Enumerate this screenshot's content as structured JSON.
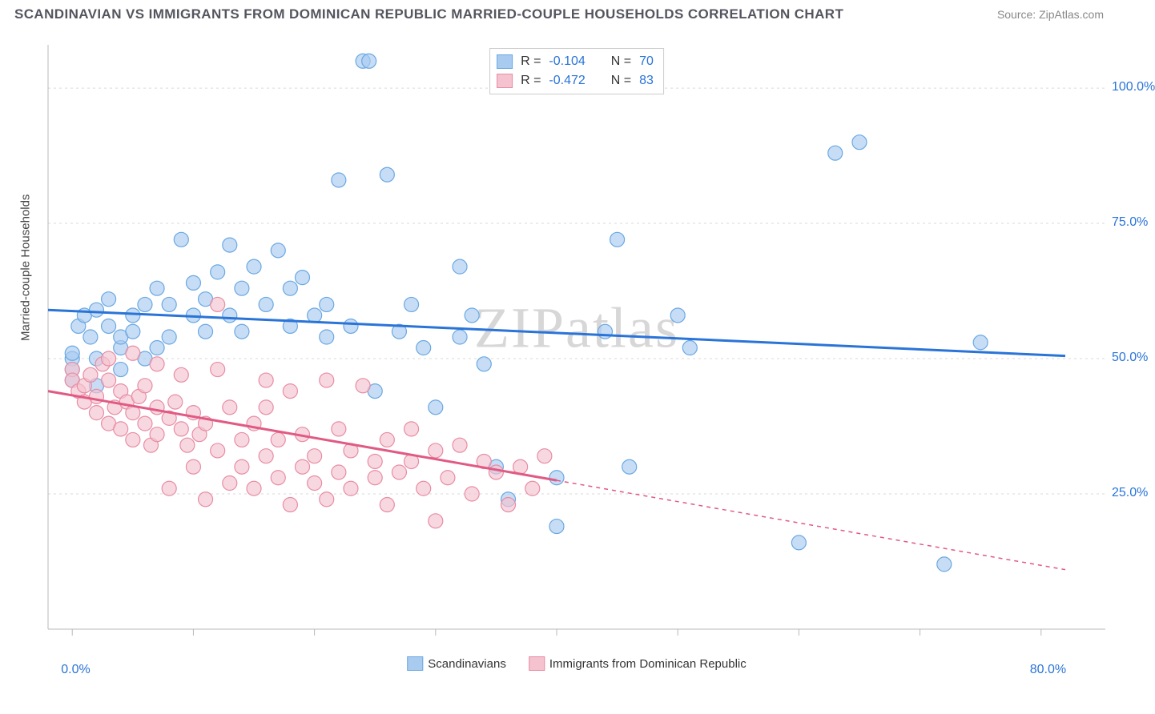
{
  "title": "SCANDINAVIAN VS IMMIGRANTS FROM DOMINICAN REPUBLIC MARRIED-COUPLE HOUSEHOLDS CORRELATION CHART",
  "source": "Source: ZipAtlas.com",
  "watermark": "ZIPatlas",
  "ylabel": "Married-couple Households",
  "chart": {
    "type": "scatter",
    "xlim": [
      -2,
      82
    ],
    "ylim": [
      0,
      108
    ],
    "xtick_positions": [
      0,
      10,
      20,
      30,
      40,
      50,
      60,
      70,
      80
    ],
    "xtick_labels": {
      "0": "0.0%",
      "80": "80.0%"
    },
    "ytick_positions_grid": [
      25,
      50,
      75,
      100
    ],
    "ytick_labels": {
      "25": "25.0%",
      "50": "50.0%",
      "75": "75.0%",
      "100": "100.0%"
    },
    "grid_color": "#d9d9d9",
    "axis_color": "#b9b9b9",
    "background_color": "#ffffff",
    "aspect_w": 1320,
    "aspect_h": 770
  },
  "series": [
    {
      "name": "Scandinavians",
      "marker_color_fill": "#a9cbef",
      "marker_color_stroke": "#6aa8e3",
      "marker_opacity": 0.65,
      "marker_radius": 9,
      "line_color": "#2a74d8",
      "line_width": 3,
      "r": "-0.104",
      "n": "70",
      "trend": {
        "x1": -2,
        "y1": 59,
        "x2": 82,
        "y2": 50.5
      },
      "trend_dash_after_x": null,
      "points": [
        [
          0,
          50
        ],
        [
          0,
          51
        ],
        [
          0,
          48
        ],
        [
          0,
          46
        ],
        [
          0.5,
          56
        ],
        [
          1,
          58
        ],
        [
          1.5,
          54
        ],
        [
          2,
          50
        ],
        [
          2,
          59
        ],
        [
          3,
          56
        ],
        [
          3,
          61
        ],
        [
          4,
          52
        ],
        [
          4,
          54
        ],
        [
          5,
          58
        ],
        [
          5,
          55
        ],
        [
          6,
          50
        ],
        [
          6,
          60
        ],
        [
          7,
          63
        ],
        [
          7,
          52
        ],
        [
          8,
          54
        ],
        [
          8,
          60
        ],
        [
          9,
          72
        ],
        [
          10,
          58
        ],
        [
          10,
          64
        ],
        [
          11,
          55
        ],
        [
          11,
          61
        ],
        [
          12,
          66
        ],
        [
          13,
          58
        ],
        [
          13,
          71
        ],
        [
          14,
          63
        ],
        [
          14,
          55
        ],
        [
          15,
          67
        ],
        [
          16,
          60
        ],
        [
          17,
          70
        ],
        [
          18,
          63
        ],
        [
          18,
          56
        ],
        [
          19,
          65
        ],
        [
          20,
          58
        ],
        [
          21,
          60
        ],
        [
          21,
          54
        ],
        [
          22,
          83
        ],
        [
          23,
          56
        ],
        [
          24,
          105
        ],
        [
          24.5,
          105
        ],
        [
          25,
          44
        ],
        [
          26,
          84
        ],
        [
          27,
          55
        ],
        [
          28,
          60
        ],
        [
          29,
          52
        ],
        [
          30,
          41
        ],
        [
          32,
          67
        ],
        [
          32,
          54
        ],
        [
          33,
          58
        ],
        [
          34,
          49
        ],
        [
          35,
          30
        ],
        [
          36,
          24
        ],
        [
          40,
          19
        ],
        [
          40,
          28
        ],
        [
          44,
          55
        ],
        [
          45,
          72
        ],
        [
          46,
          30
        ],
        [
          50,
          58
        ],
        [
          51,
          52
        ],
        [
          60,
          16
        ],
        [
          63,
          88
        ],
        [
          65,
          90
        ],
        [
          72,
          12
        ],
        [
          75,
          53
        ],
        [
          2,
          45
        ],
        [
          4,
          48
        ]
      ]
    },
    {
      "name": "Immigrants from Dominican Republic",
      "marker_color_fill": "#f4c3cf",
      "marker_color_stroke": "#e88ca4",
      "marker_opacity": 0.65,
      "marker_radius": 9,
      "line_color": "#e15a84",
      "line_width": 3,
      "r": "-0.472",
      "n": "83",
      "trend": {
        "x1": -2,
        "y1": 44,
        "x2": 82,
        "y2": 11
      },
      "trend_dash_after_x": 40,
      "points": [
        [
          0,
          48
        ],
        [
          0,
          46
        ],
        [
          0.5,
          44
        ],
        [
          1,
          42
        ],
        [
          1,
          45
        ],
        [
          1.5,
          47
        ],
        [
          2,
          40
        ],
        [
          2,
          43
        ],
        [
          2.5,
          49
        ],
        [
          3,
          38
        ],
        [
          3,
          46
        ],
        [
          3.5,
          41
        ],
        [
          4,
          44
        ],
        [
          4,
          37
        ],
        [
          4.5,
          42
        ],
        [
          5,
          40
        ],
        [
          5,
          35
        ],
        [
          5.5,
          43
        ],
        [
          6,
          38
        ],
        [
          6,
          45
        ],
        [
          6.5,
          34
        ],
        [
          7,
          41
        ],
        [
          7,
          36
        ],
        [
          8,
          39
        ],
        [
          8,
          26
        ],
        [
          8.5,
          42
        ],
        [
          9,
          37
        ],
        [
          9,
          47
        ],
        [
          9.5,
          34
        ],
        [
          10,
          40
        ],
        [
          10,
          30
        ],
        [
          10.5,
          36
        ],
        [
          11,
          24
        ],
        [
          11,
          38
        ],
        [
          12,
          48
        ],
        [
          12,
          33
        ],
        [
          13,
          41
        ],
        [
          13,
          27
        ],
        [
          14,
          35
        ],
        [
          14,
          30
        ],
        [
          15,
          26
        ],
        [
          15,
          38
        ],
        [
          16,
          32
        ],
        [
          16,
          41
        ],
        [
          17,
          28
        ],
        [
          17,
          35
        ],
        [
          18,
          23
        ],
        [
          18,
          44
        ],
        [
          19,
          30
        ],
        [
          19,
          36
        ],
        [
          20,
          27
        ],
        [
          20,
          32
        ],
        [
          21,
          46
        ],
        [
          21,
          24
        ],
        [
          22,
          37
        ],
        [
          22,
          29
        ],
        [
          23,
          33
        ],
        [
          23,
          26
        ],
        [
          24,
          45
        ],
        [
          25,
          31
        ],
        [
          25,
          28
        ],
        [
          26,
          35
        ],
        [
          26,
          23
        ],
        [
          27,
          29
        ],
        [
          28,
          37
        ],
        [
          28,
          31
        ],
        [
          29,
          26
        ],
        [
          30,
          33
        ],
        [
          30,
          20
        ],
        [
          31,
          28
        ],
        [
          32,
          34
        ],
        [
          33,
          25
        ],
        [
          34,
          31
        ],
        [
          35,
          29
        ],
        [
          36,
          23
        ],
        [
          37,
          30
        ],
        [
          38,
          26
        ],
        [
          39,
          32
        ],
        [
          12,
          60
        ],
        [
          7,
          49
        ],
        [
          5,
          51
        ],
        [
          3,
          50
        ],
        [
          16,
          46
        ]
      ]
    }
  ],
  "legend_top_labels": {
    "r_prefix": "R = ",
    "n_prefix": "N = "
  },
  "font_sizes": {
    "title": 17,
    "axis_label": 15,
    "tick": 16,
    "legend": 15,
    "watermark": 72
  }
}
